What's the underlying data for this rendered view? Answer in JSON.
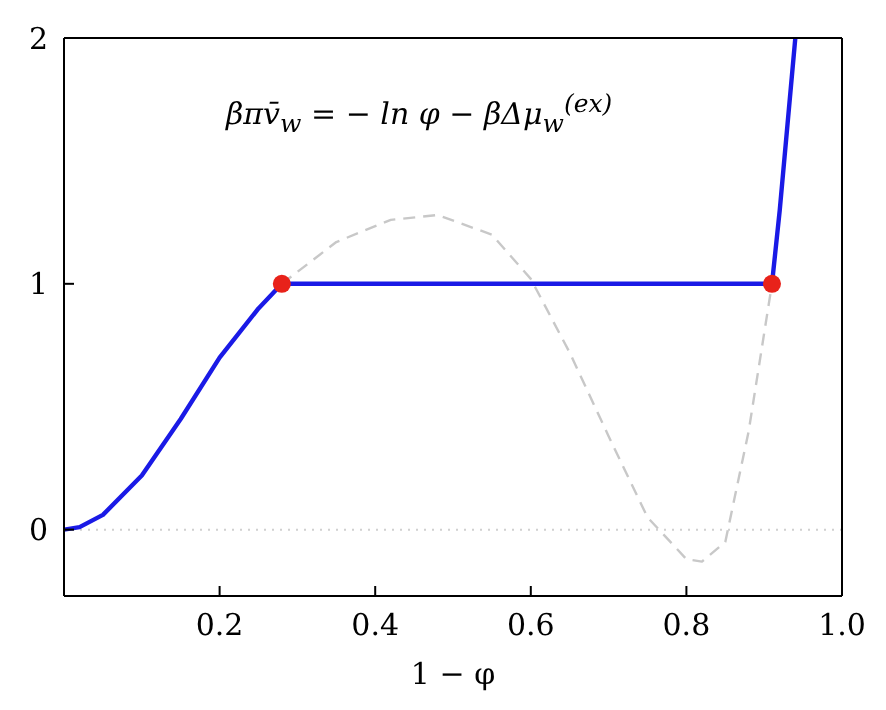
{
  "chart_data": {
    "type": "line",
    "xlabel": "1 − φ",
    "annotations": [
      {
        "text": "βπv̄$_{w}$ = − ln φ − βΔμ$_{w}$$^{(ex)}$"
      }
    ],
    "xlim": [
      0,
      1
    ],
    "xticks": [
      {
        "value": 0,
        "label": null
      },
      0.2,
      0.4,
      0.6,
      0.8,
      {
        "value": 1,
        "label": "1.0"
      }
    ],
    "ylim": [
      -0.27,
      2
    ],
    "yticks": [
      0,
      1,
      2
    ],
    "grid": false,
    "marker": "none",
    "ref_lines": [
      {
        "axis": "y",
        "value": 0,
        "color": "#d0d0d0",
        "line_style": "dotted"
      }
    ],
    "series": [
      {
        "type": "line",
        "color": "#c8c8c8",
        "line_style": "dashed",
        "x": [
          0.28,
          0.35,
          0.42,
          0.48,
          0.55,
          0.6,
          0.65,
          0.7,
          0.75,
          0.8,
          0.82,
          0.85,
          0.88,
          0.91
        ],
        "values": [
          1,
          1.17,
          1.26,
          1.28,
          1.2,
          1.02,
          0.72,
          0.38,
          0.05,
          -0.12,
          -0.13,
          -0.05,
          0.4,
          1
        ]
      },
      {
        "type": "line",
        "color": "#1a1ae6",
        "line_style": "solid",
        "x": [
          0,
          0.02,
          0.05,
          0.1,
          0.15,
          0.2,
          0.25,
          0.28,
          0.91,
          0.92,
          0.93,
          0.94
        ],
        "values": [
          0,
          0.01,
          0.06,
          0.22,
          0.45,
          0.7,
          0.9,
          1,
          1,
          1.3,
          1.65,
          2
        ]
      },
      {
        "type": "scatter",
        "color": "#e8221a",
        "marker": "circle",
        "x": [
          0.28,
          0.91
        ],
        "values": [
          1,
          1
        ]
      }
    ]
  }
}
